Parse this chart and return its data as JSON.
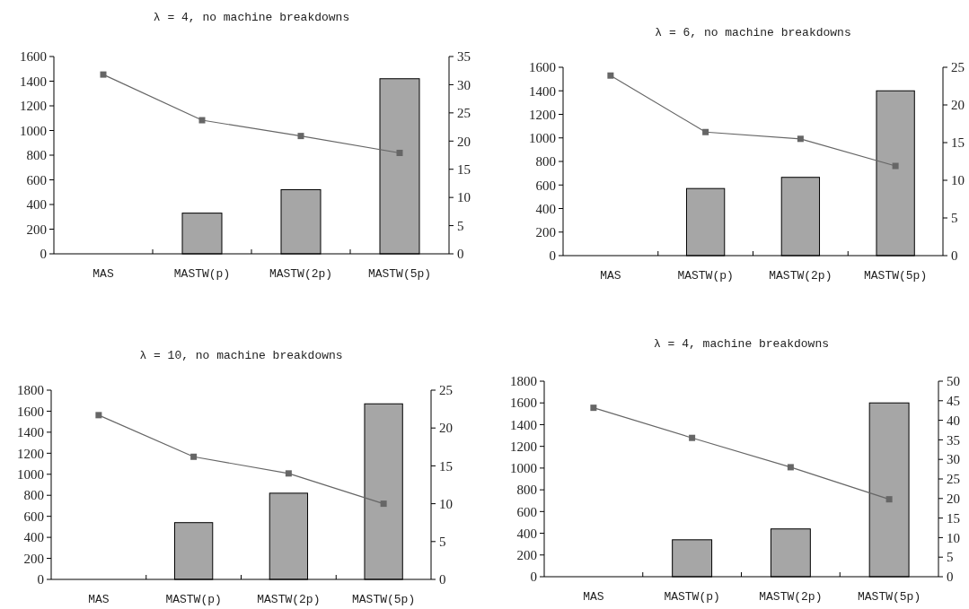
{
  "chart_data": [
    {
      "type": "bar",
      "title": "λ = 4, no machine breakdowns",
      "categories": [
        "MAS",
        "MASTW(p)",
        "MASTW(2p)",
        "MASTW(5p)"
      ],
      "ylim": [
        0,
        1600
      ],
      "yticks": [
        0,
        200,
        400,
        600,
        800,
        1000,
        1200,
        1400,
        1600
      ],
      "y2lim": [
        0,
        35
      ],
      "y2ticks": [
        0,
        5,
        10,
        15,
        20,
        25,
        30,
        35
      ],
      "marker": "square",
      "series": [
        {
          "color": "#a6a6a6",
          "values": [
            0,
            330,
            520,
            1420
          ]
        },
        {
          "type": "line",
          "axis": "y2",
          "color": "#666666",
          "values": [
            31.8,
            23.7,
            20.9,
            17.9
          ]
        }
      ]
    },
    {
      "type": "bar",
      "title": "λ = 6, no machine breakdowns",
      "categories": [
        "MAS",
        "MASTW(p)",
        "MASTW(2p)",
        "MASTW(5p)"
      ],
      "ylim": [
        0,
        1600
      ],
      "yticks": [
        0,
        200,
        400,
        600,
        800,
        1000,
        1200,
        1400,
        1600
      ],
      "y2lim": [
        0,
        25
      ],
      "y2ticks": [
        0,
        5,
        10,
        15,
        20,
        25
      ],
      "marker": "square",
      "series": [
        {
          "color": "#a6a6a6",
          "values": [
            0,
            570,
            665,
            1400
          ]
        },
        {
          "type": "line",
          "axis": "y2",
          "color": "#666666",
          "values": [
            23.9,
            16.4,
            15.5,
            11.9
          ]
        }
      ]
    },
    {
      "type": "bar",
      "title": "λ = 10, no machine breakdowns",
      "categories": [
        "MAS",
        "MASTW(p)",
        "MASTW(2p)",
        "MASTW(5p)"
      ],
      "ylim": [
        0,
        1800
      ],
      "yticks": [
        0,
        200,
        400,
        600,
        800,
        1000,
        1200,
        1400,
        1600,
        1800
      ],
      "y2lim": [
        0,
        25
      ],
      "y2ticks": [
        0,
        5,
        10,
        15,
        20,
        25
      ],
      "marker": "square",
      "series": [
        {
          "color": "#a6a6a6",
          "values": [
            0,
            540,
            820,
            1670
          ]
        },
        {
          "type": "line",
          "axis": "y2",
          "color": "#666666",
          "values": [
            21.7,
            16.2,
            14.0,
            10.0
          ]
        }
      ]
    },
    {
      "type": "bar",
      "title": "λ = 4, machine breakdowns",
      "categories": [
        "MAS",
        "MASTW(p)",
        "MASTW(2p)",
        "MASTW(5p)"
      ],
      "ylim": [
        0,
        1800
      ],
      "yticks": [
        0,
        200,
        400,
        600,
        800,
        1000,
        1200,
        1400,
        1600,
        1800
      ],
      "y2lim": [
        0,
        50
      ],
      "y2ticks": [
        0,
        5,
        10,
        15,
        20,
        25,
        30,
        35,
        40,
        45,
        50
      ],
      "marker": "square",
      "series": [
        {
          "color": "#a6a6a6",
          "values": [
            0,
            340,
            440,
            1600
          ]
        },
        {
          "type": "line",
          "axis": "y2",
          "color": "#666666",
          "values": [
            43.2,
            35.5,
            28.0,
            19.8
          ]
        }
      ]
    }
  ]
}
